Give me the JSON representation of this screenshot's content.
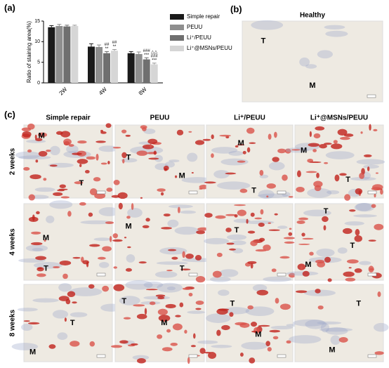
{
  "chart_data": {
    "type": "bar",
    "panel_label": "(a)",
    "ylabel": "Ratio of staining area(%)",
    "categories": [
      "2W",
      "4W",
      "8W"
    ],
    "series": [
      {
        "name": "Simple repair",
        "color": "#1a1a1a",
        "values": [
          13.5,
          8.8,
          7.2
        ],
        "errors": [
          0.4,
          0.7,
          0.4
        ]
      },
      {
        "name": "PEUU",
        "color": "#8e8e8e",
        "values": [
          13.8,
          8.7,
          7.0
        ],
        "errors": [
          0.4,
          0.5,
          0.5
        ]
      },
      {
        "name": "Li⁺/PEUU",
        "color": "#6f6f6f",
        "values": [
          13.7,
          7.2,
          5.7
        ],
        "errors": [
          0.3,
          0.4,
          0.4
        ]
      },
      {
        "name": "Li⁺@MSNs/PEUU",
        "color": "#d6d6d6",
        "values": [
          13.8,
          7.8,
          4.5
        ],
        "errors": [
          0.2,
          0.3,
          0.3
        ]
      }
    ],
    "annotations": [
      "##",
      "**",
      "##",
      "**",
      "###",
      "***",
      "△△",
      "###",
      "***"
    ],
    "ylim": [
      0,
      15
    ],
    "yticks": [
      0,
      5,
      10,
      15
    ]
  },
  "panel_b": {
    "label": "(b)",
    "title": "Healthy",
    "image_labels": [
      "T",
      "M"
    ]
  },
  "panel_c": {
    "label": "(c)",
    "columns": [
      "Simple repair",
      "PEUU",
      "Li⁺/PEUU",
      "Li⁺@MSNs/PEUU"
    ],
    "rows": [
      "2 weeks",
      "4 weeks",
      "8 weeks"
    ],
    "cells": [
      [
        [
          "M",
          "T"
        ],
        [
          "T",
          "M"
        ],
        [
          "M",
          "T"
        ],
        [
          "M",
          "T"
        ]
      ],
      [
        [
          "M",
          "T"
        ],
        [
          "M",
          "T"
        ],
        [
          "T"
        ],
        [
          "T",
          "T",
          "M"
        ]
      ],
      [
        [
          "T",
          "M"
        ],
        [
          "T",
          "M"
        ],
        [
          "T",
          "M"
        ],
        [
          "T",
          "M"
        ]
      ]
    ]
  }
}
